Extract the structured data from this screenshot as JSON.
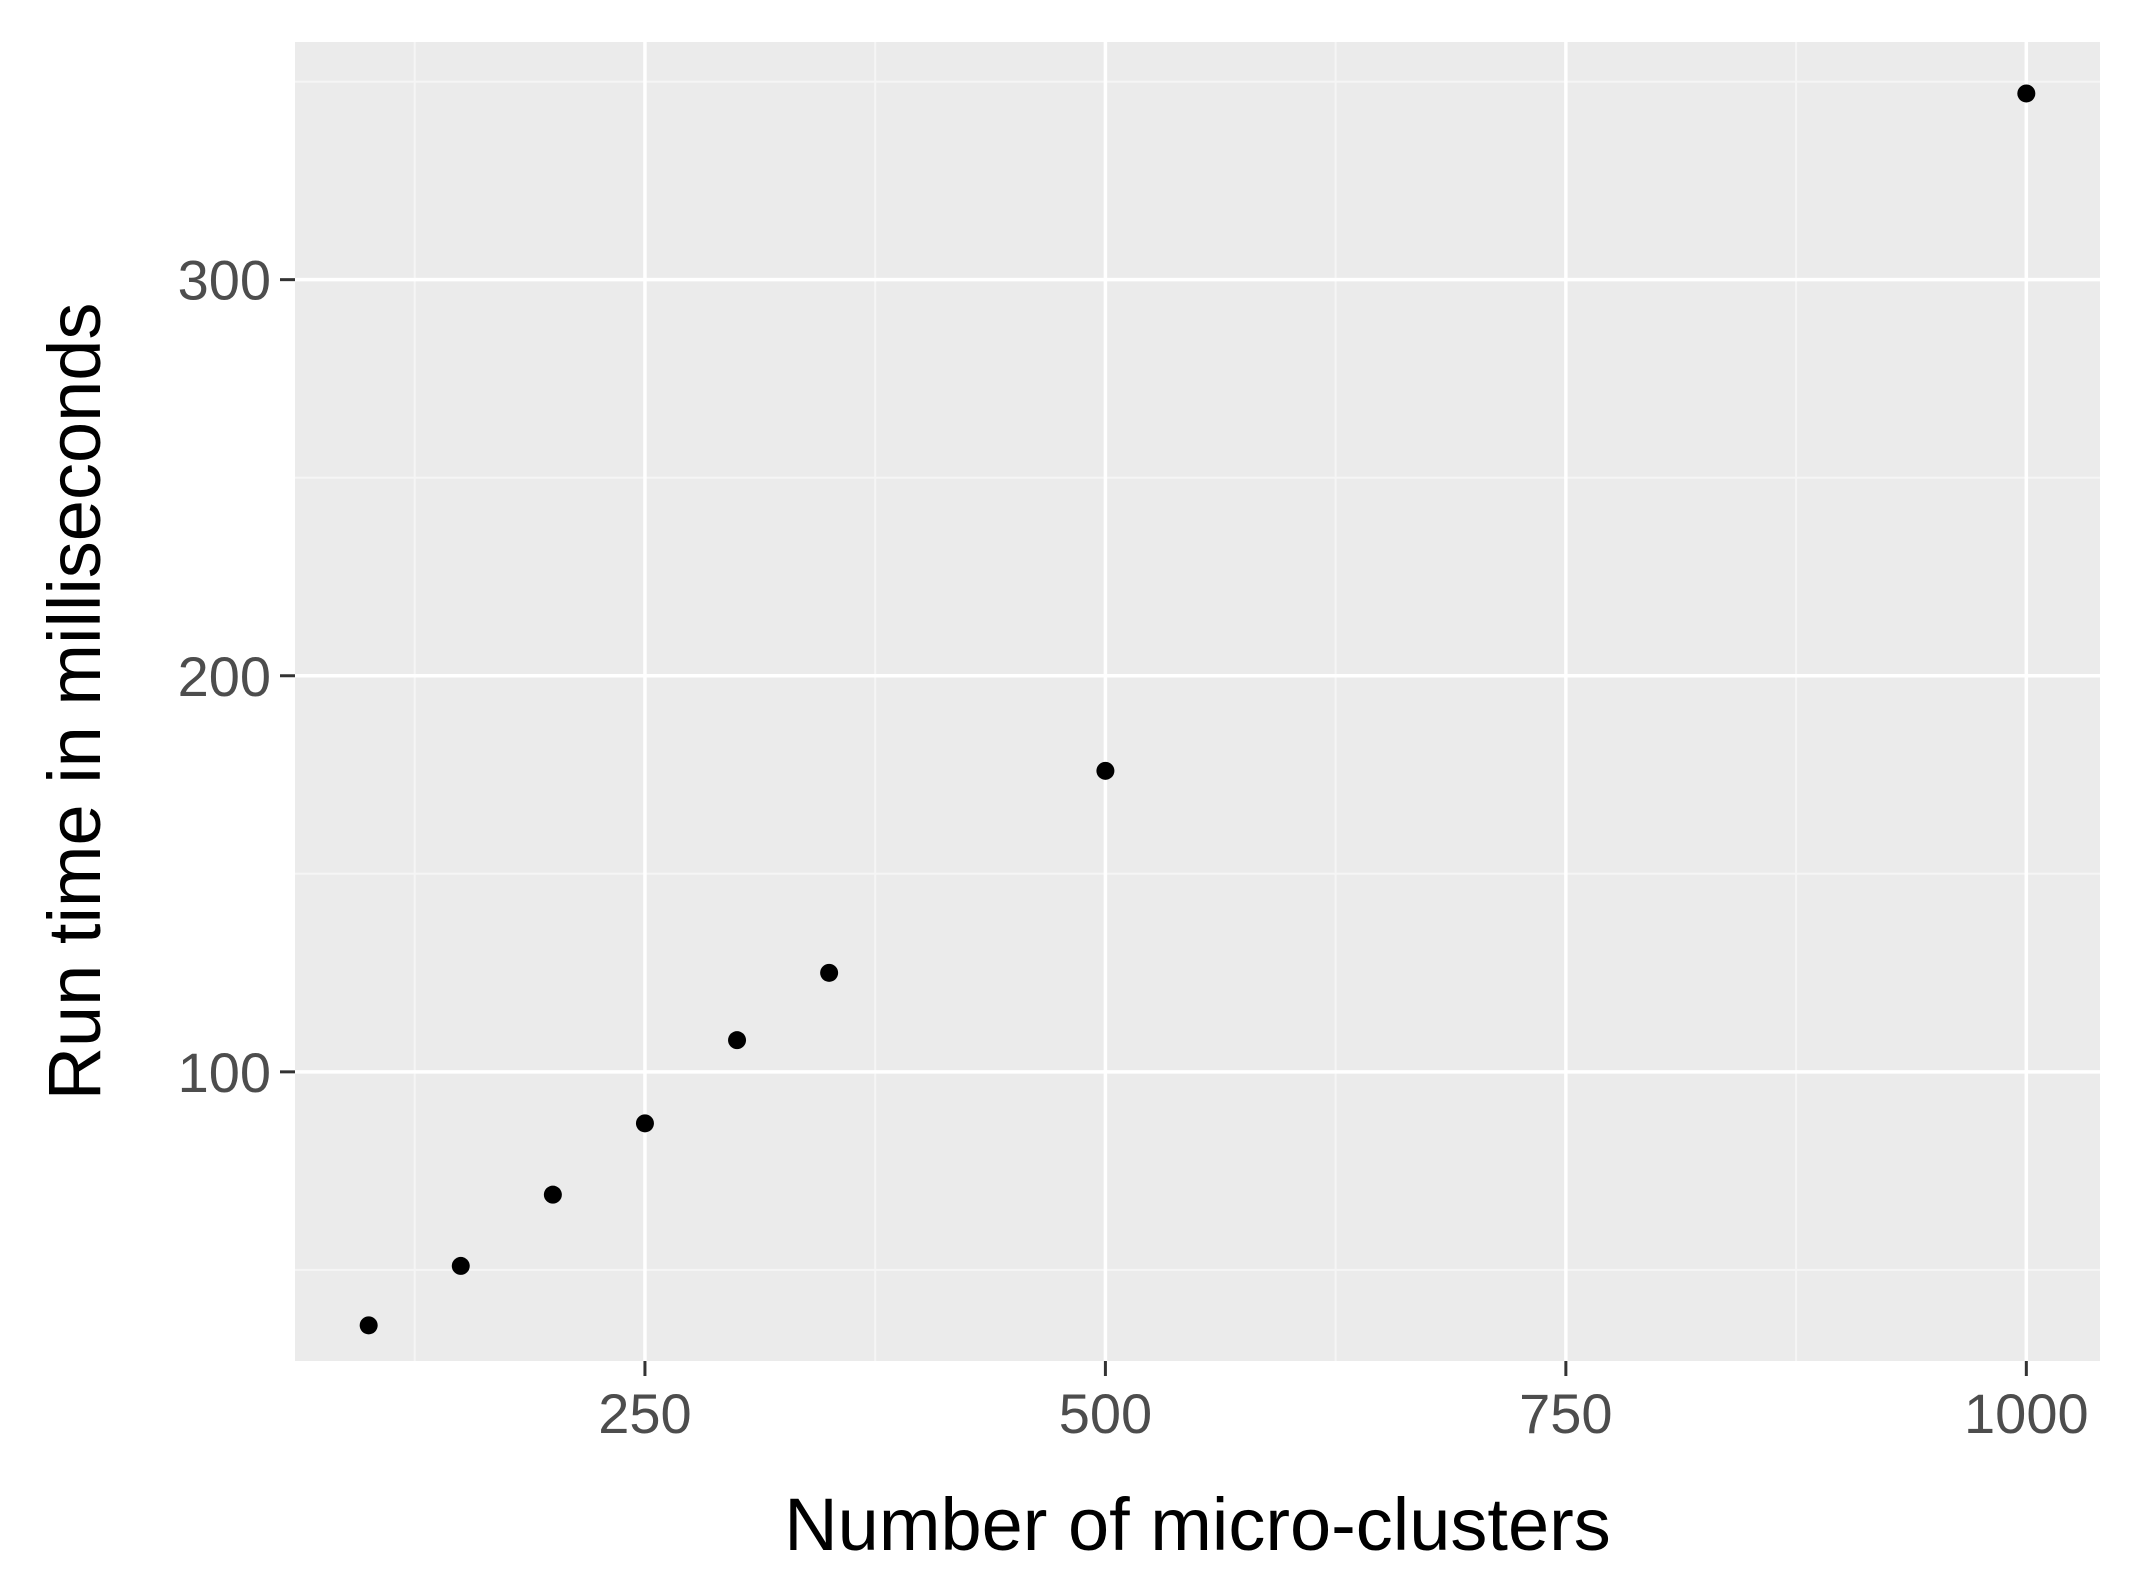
{
  "chart_data": {
    "type": "scatter",
    "title": "",
    "xlabel": "Number of micro-clusters",
    "ylabel": "Run time in milliseconds",
    "xlim": [
      60,
      1040
    ],
    "ylim": [
      27,
      360
    ],
    "x_major_ticks": [
      250,
      500,
      750,
      1000
    ],
    "x_minor_ticks": [
      125,
      375,
      625,
      875
    ],
    "y_major_ticks": [
      100,
      200,
      300
    ],
    "y_minor_ticks": [
      50,
      150,
      250,
      350
    ],
    "x_tick_labels": [
      "250",
      "500",
      "750",
      "1000"
    ],
    "y_tick_labels": [
      "100",
      "200",
      "300"
    ],
    "grid": true,
    "colors": {
      "panel_background": "#ebebeb",
      "grid_major": "#ffffff",
      "grid_minor": "#f5f5f5",
      "point": "#000000",
      "tick_text": "#4d4d4d",
      "axis_title": "#000000"
    },
    "points": [
      {
        "x": 100,
        "y": 36
      },
      {
        "x": 150,
        "y": 51
      },
      {
        "x": 200,
        "y": 69
      },
      {
        "x": 250,
        "y": 87
      },
      {
        "x": 300,
        "y": 108
      },
      {
        "x": 350,
        "y": 125
      },
      {
        "x": 500,
        "y": 176
      },
      {
        "x": 1000,
        "y": 347
      }
    ]
  }
}
